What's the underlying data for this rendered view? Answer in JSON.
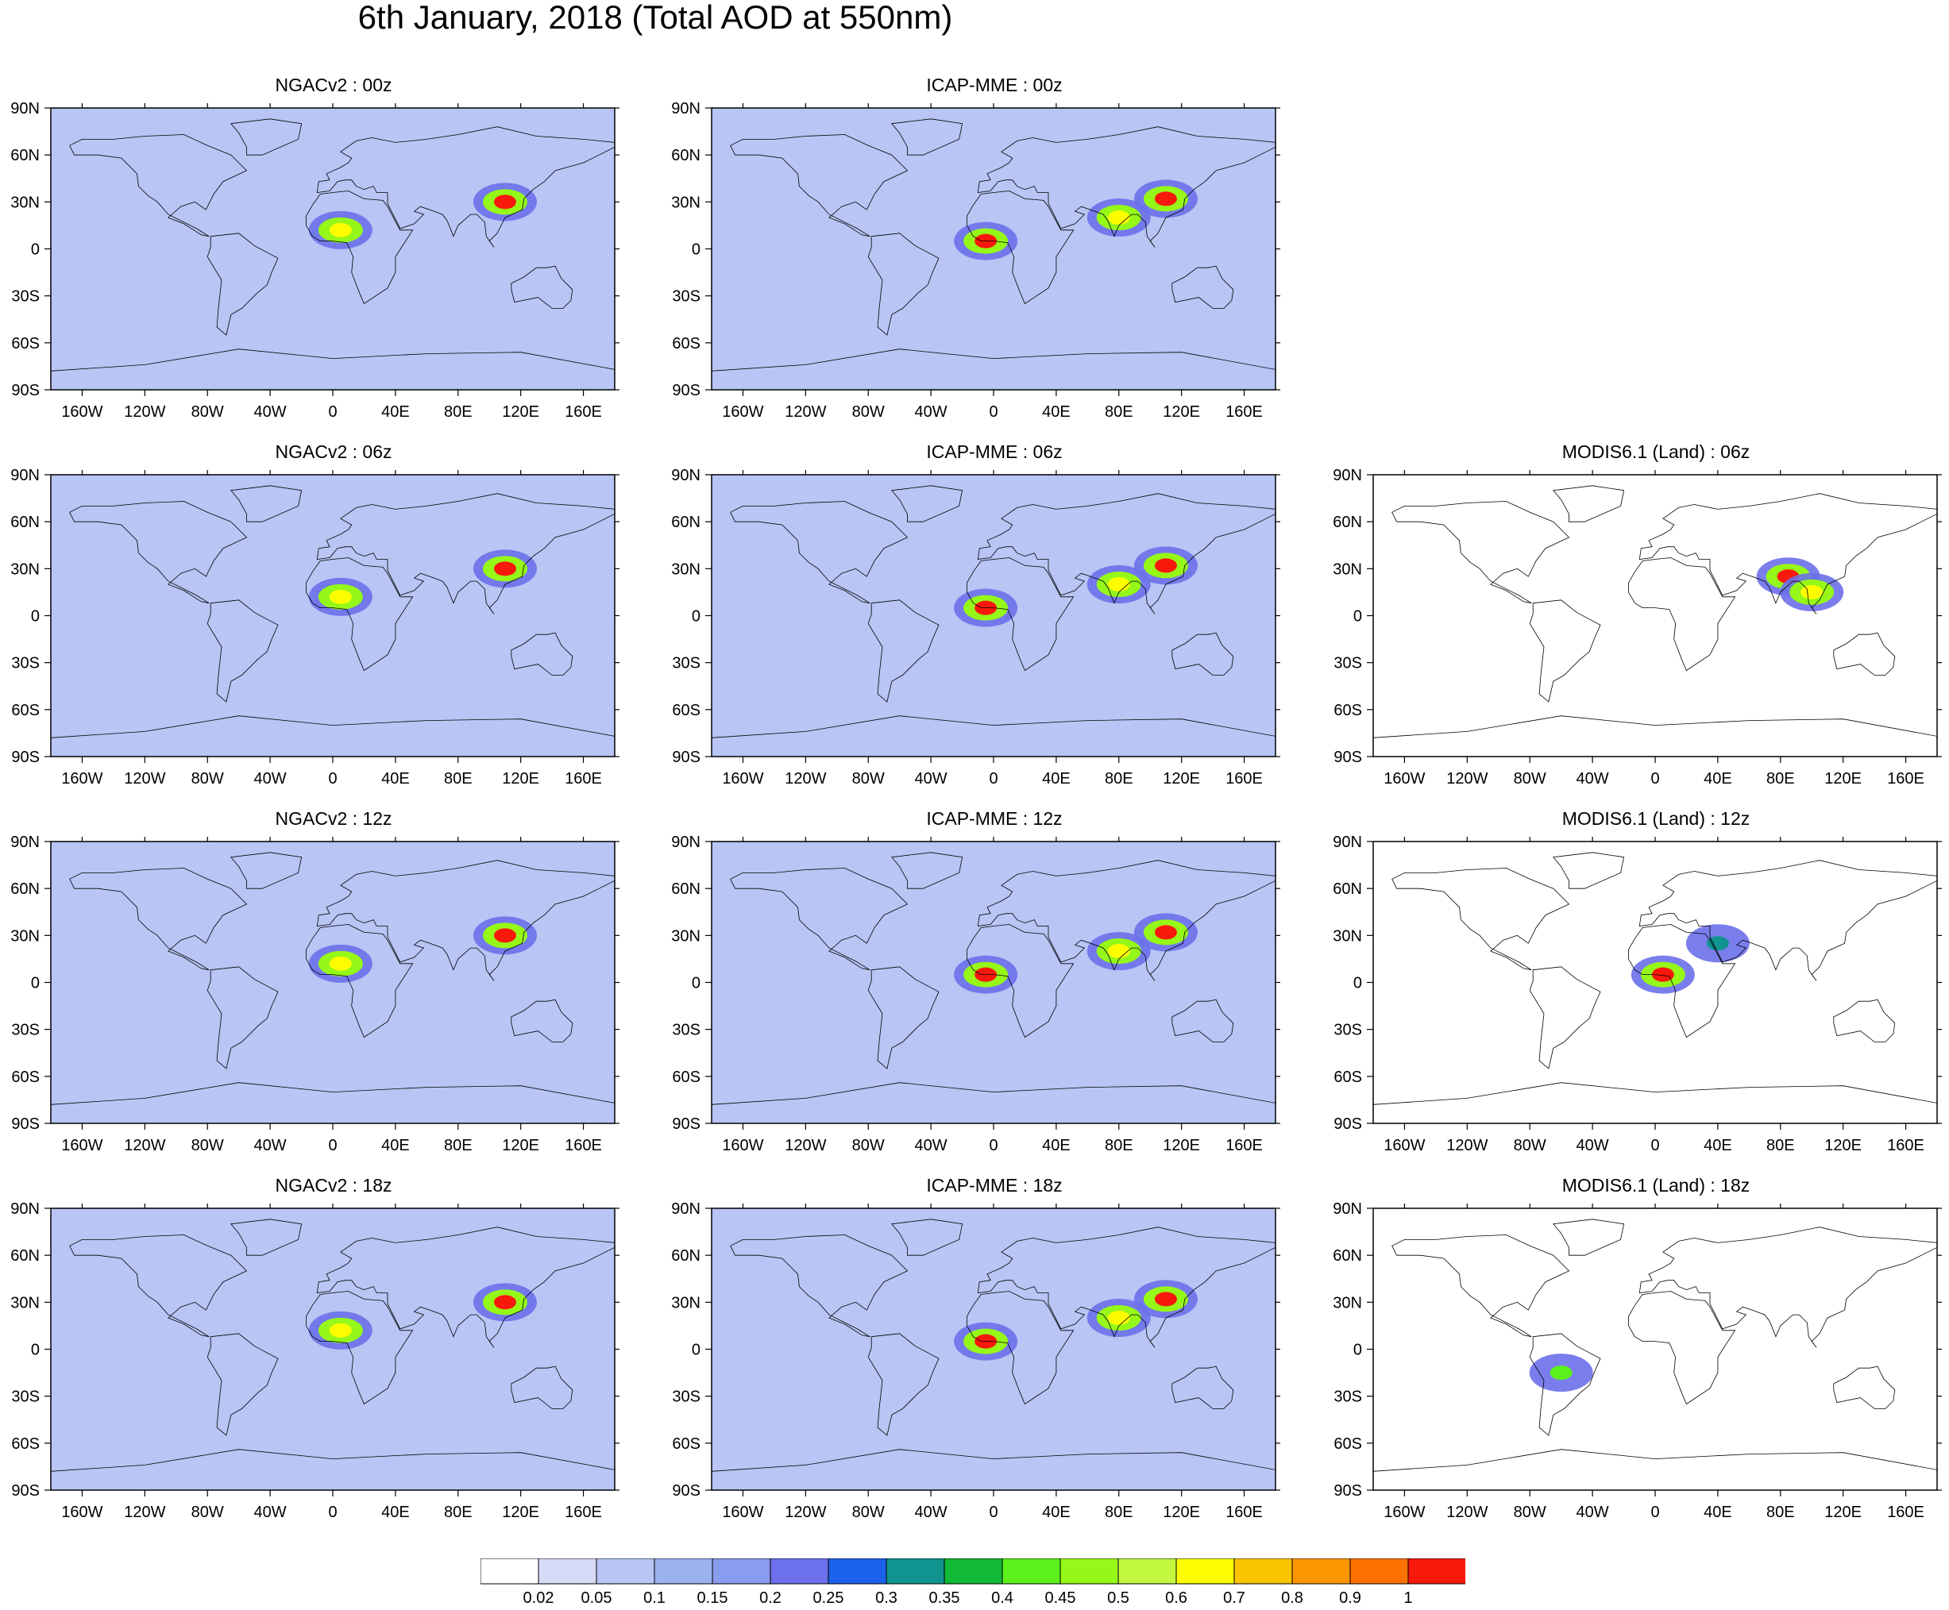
{
  "title": "6th January, 2018 (Total AOD at 550nm)",
  "chart_data": {
    "type": "heatmap",
    "title": "6th January, 2018 (Total AOD at 550nm)",
    "panels": [
      {
        "title": "NGACv2 : 00z",
        "model": "NGACv2",
        "time": "00z",
        "coverage": "global",
        "hotspots": [
          {
            "lon": 5,
            "lat": 12,
            "aod": 0.6
          },
          {
            "lon": 110,
            "lat": 30,
            "aod": 1.0
          }
        ]
      },
      {
        "title": "ICAP-MME : 00z",
        "model": "ICAP-MME",
        "time": "00z",
        "coverage": "global",
        "hotspots": [
          {
            "lon": -5,
            "lat": 5,
            "aod": 1.0
          },
          {
            "lon": 110,
            "lat": 32,
            "aod": 1.0
          },
          {
            "lon": 80,
            "lat": 20,
            "aod": 0.6
          }
        ]
      },
      {
        "title": "NGACv2 : 06z",
        "model": "NGACv2",
        "time": "06z",
        "coverage": "global",
        "hotspots": [
          {
            "lon": 5,
            "lat": 12,
            "aod": 0.6
          },
          {
            "lon": 110,
            "lat": 30,
            "aod": 1.0
          }
        ]
      },
      {
        "title": "ICAP-MME : 06z",
        "model": "ICAP-MME",
        "time": "06z",
        "coverage": "global",
        "hotspots": [
          {
            "lon": -5,
            "lat": 5,
            "aod": 1.0
          },
          {
            "lon": 110,
            "lat": 32,
            "aod": 1.0
          },
          {
            "lon": 80,
            "lat": 20,
            "aod": 0.6
          }
        ]
      },
      {
        "title": "MODIS6.1 (Land) : 06z",
        "model": "MODIS6.1 (Land)",
        "time": "06z",
        "coverage": "swath",
        "hotspots": [
          {
            "lon": 85,
            "lat": 25,
            "aod": 1.0
          },
          {
            "lon": 100,
            "lat": 15,
            "aod": 0.6
          }
        ]
      },
      {
        "title": "NGACv2 : 12z",
        "model": "NGACv2",
        "time": "12z",
        "coverage": "global",
        "hotspots": [
          {
            "lon": 5,
            "lat": 12,
            "aod": 0.6
          },
          {
            "lon": 110,
            "lat": 30,
            "aod": 1.0
          }
        ]
      },
      {
        "title": "ICAP-MME : 12z",
        "model": "ICAP-MME",
        "time": "12z",
        "coverage": "global",
        "hotspots": [
          {
            "lon": -5,
            "lat": 5,
            "aod": 1.0
          },
          {
            "lon": 110,
            "lat": 32,
            "aod": 1.0
          },
          {
            "lon": 80,
            "lat": 20,
            "aod": 0.6
          }
        ]
      },
      {
        "title": "MODIS6.1 (Land) : 12z",
        "model": "MODIS6.1 (Land)",
        "time": "12z",
        "coverage": "swath",
        "hotspots": [
          {
            "lon": 5,
            "lat": 5,
            "aod": 1.0
          },
          {
            "lon": 40,
            "lat": 25,
            "aod": 0.3
          }
        ]
      },
      {
        "title": "NGACv2 : 18z",
        "model": "NGACv2",
        "time": "18z",
        "coverage": "global",
        "hotspots": [
          {
            "lon": 5,
            "lat": 12,
            "aod": 0.6
          },
          {
            "lon": 110,
            "lat": 30,
            "aod": 1.0
          }
        ]
      },
      {
        "title": "ICAP-MME : 18z",
        "model": "ICAP-MME",
        "time": "18z",
        "coverage": "global",
        "hotspots": [
          {
            "lon": -5,
            "lat": 5,
            "aod": 1.0
          },
          {
            "lon": 110,
            "lat": 32,
            "aod": 1.0
          },
          {
            "lon": 80,
            "lat": 20,
            "aod": 0.6
          }
        ]
      },
      {
        "title": "MODIS6.1 (Land) : 18z",
        "model": "MODIS6.1 (Land)",
        "time": "18z",
        "coverage": "swath",
        "hotspots": [
          {
            "lon": -60,
            "lat": -15,
            "aod": 0.4
          }
        ]
      }
    ],
    "x_tick_labels": [
      "160W",
      "120W",
      "80W",
      "40W",
      "0",
      "40E",
      "80E",
      "120E",
      "160E"
    ],
    "x_tick_values": [
      -160,
      -120,
      -80,
      -40,
      0,
      40,
      80,
      120,
      160
    ],
    "y_tick_labels": [
      "90N",
      "60N",
      "30N",
      "0",
      "30S",
      "60S",
      "90S"
    ],
    "y_tick_values": [
      90,
      60,
      30,
      0,
      -30,
      -60,
      -90
    ],
    "xlim": [
      -180,
      180
    ],
    "ylim": [
      -90,
      90
    ],
    "colorbar": {
      "labels": [
        "0.02",
        "0.05",
        "0.1",
        "0.15",
        "0.2",
        "0.25",
        "0.3",
        "0.35",
        "0.4",
        "0.45",
        "0.5",
        "0.6",
        "0.7",
        "0.8",
        "0.9",
        "1"
      ],
      "colors": [
        "#ffffff",
        "#d6dcf7",
        "#b8c5f5",
        "#9cb2f0",
        "#8a9cee",
        "#6c70ea",
        "#1c62ec",
        "#11938f",
        "#12b936",
        "#5cf11b",
        "#95f818",
        "#c2f83f",
        "#fdfd00",
        "#fbc400",
        "#fb9600",
        "#fb7200",
        "#f9180c"
      ]
    }
  }
}
